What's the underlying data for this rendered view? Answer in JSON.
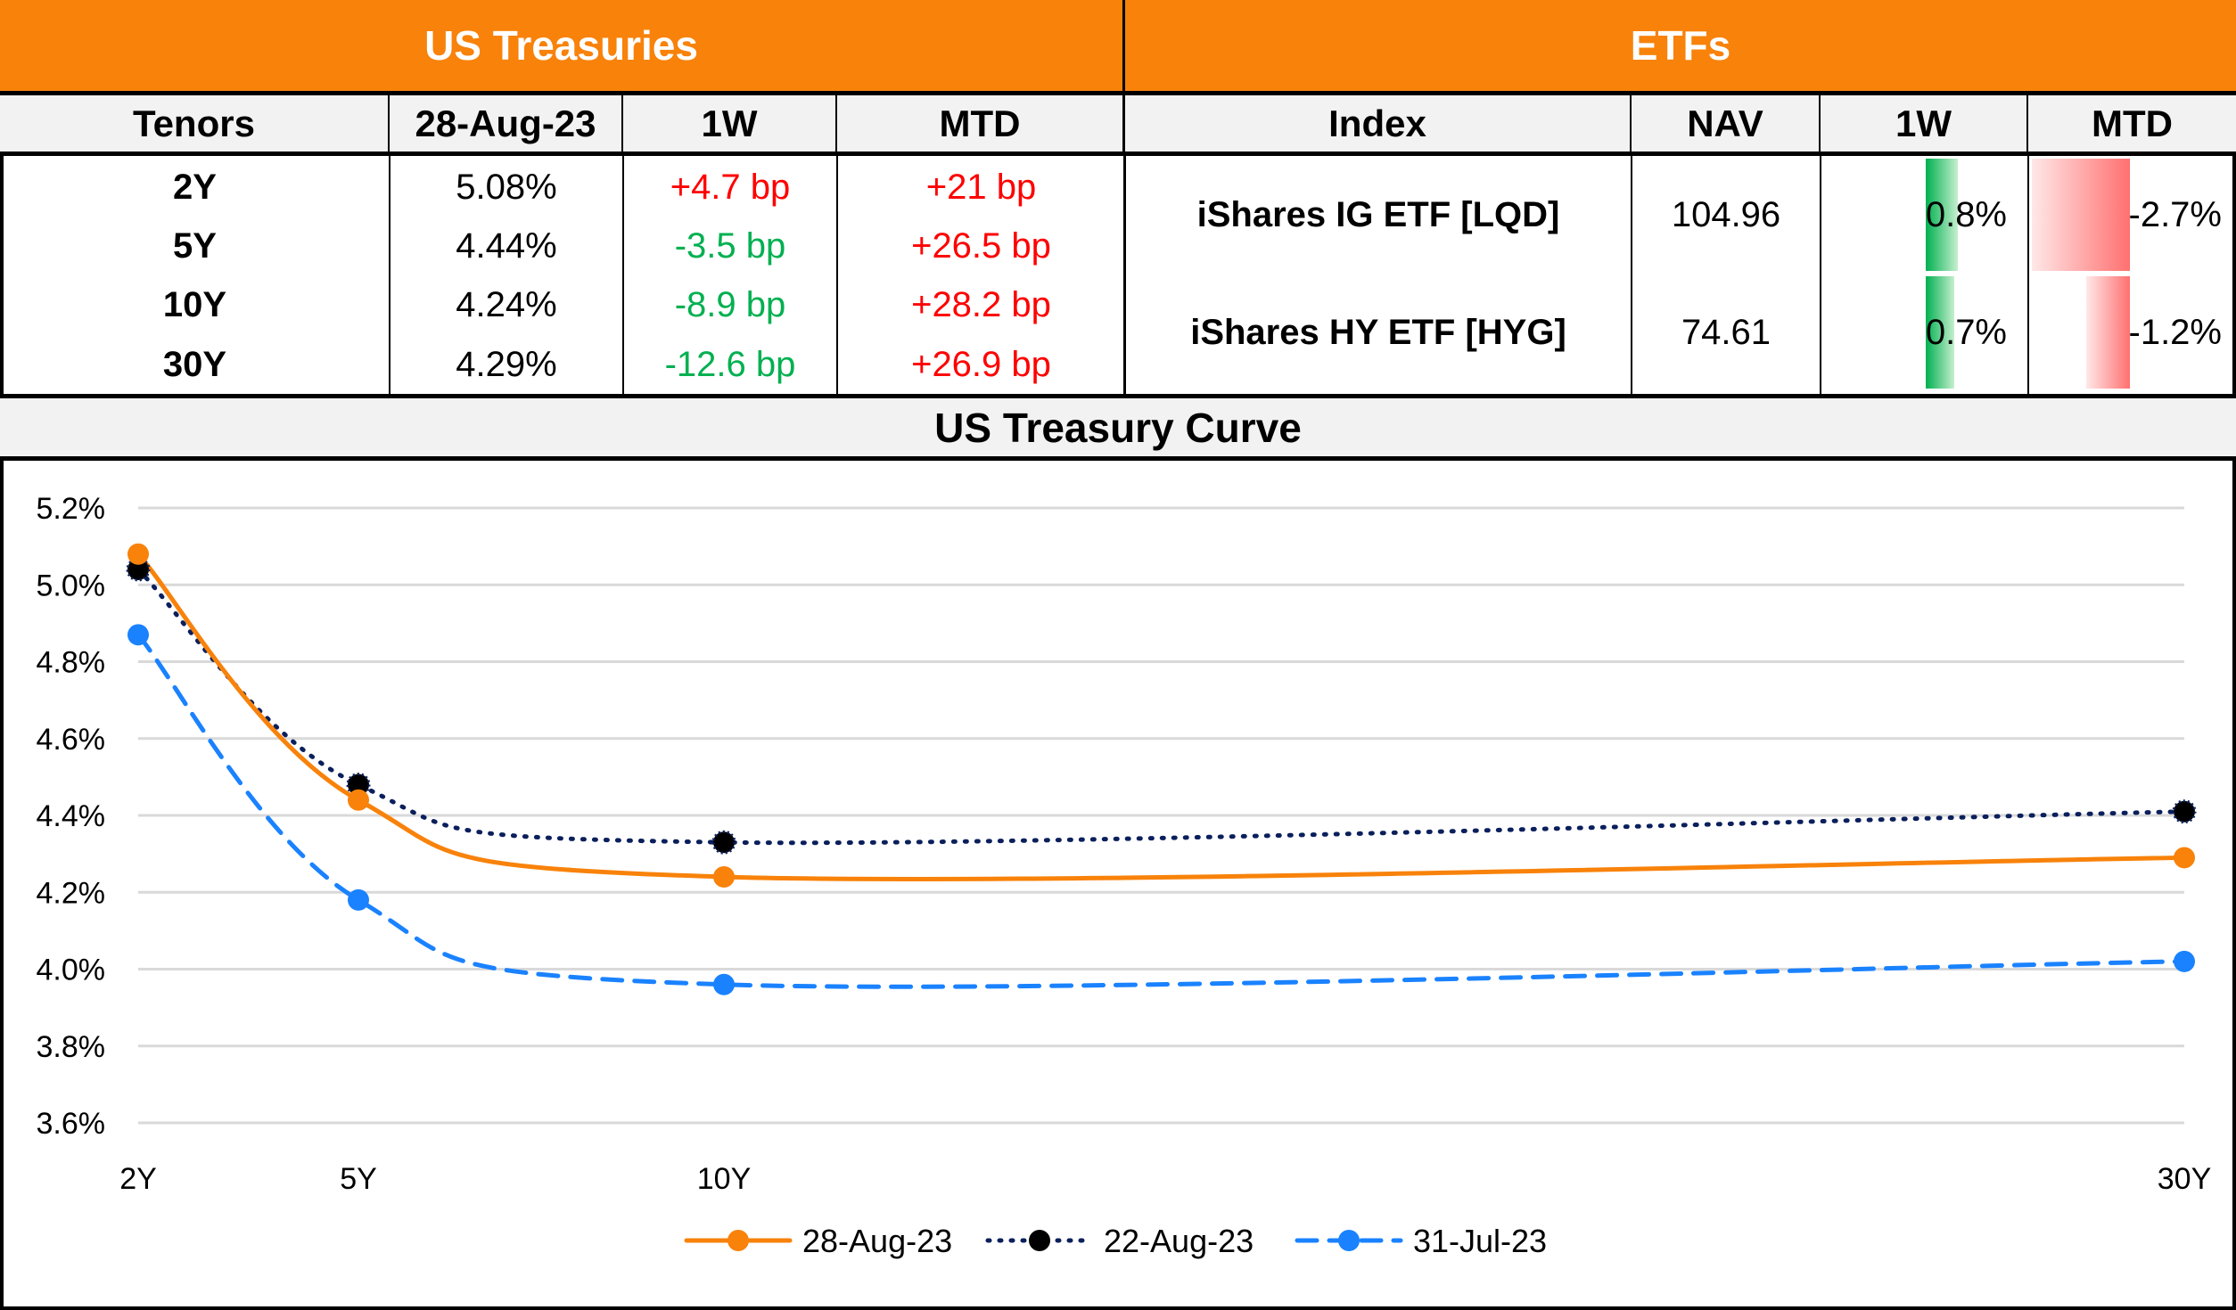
{
  "treasuries": {
    "title": "US Treasuries",
    "headers": [
      "Tenors",
      "28-Aug-23",
      "1W",
      "MTD"
    ],
    "rows": [
      {
        "tenor": "2Y",
        "yield": "5.08%",
        "w1": "+4.7 bp",
        "w1_dir": "up",
        "mtd": "+21 bp",
        "mtd_dir": "up"
      },
      {
        "tenor": "5Y",
        "yield": "4.44%",
        "w1": "-3.5 bp",
        "w1_dir": "down",
        "mtd": "+26.5 bp",
        "mtd_dir": "up"
      },
      {
        "tenor": "10Y",
        "yield": "4.24%",
        "w1": "-8.9 bp",
        "w1_dir": "down",
        "mtd": "+28.2 bp",
        "mtd_dir": "up"
      },
      {
        "tenor": "30Y",
        "yield": "4.29%",
        "w1": "-12.6 bp",
        "w1_dir": "down",
        "mtd": "+26.9 bp",
        "mtd_dir": "up"
      }
    ]
  },
  "etfs": {
    "title": "ETFs",
    "headers": [
      "Index",
      "NAV",
      "1W",
      "MTD"
    ],
    "rows": [
      {
        "name": "iShares IG ETF [LQD]",
        "nav": "104.96",
        "w1": "0.8%",
        "w1_value": 0.8,
        "mtd": "-2.7%",
        "mtd_value": -2.7
      },
      {
        "name": "iShares HY ETF [HYG]",
        "nav": "74.61",
        "w1": "0.7%",
        "w1_value": 0.7,
        "mtd": "-1.2%",
        "mtd_value": -1.2
      }
    ]
  },
  "colors": {
    "header_orange": "#f8820a",
    "up_red": "#ff0000",
    "down_green": "#00b050",
    "bar_green": "#00b050",
    "bar_red": "#ff7070"
  },
  "chart_data": {
    "type": "line",
    "title": "US Treasury Curve",
    "xlabel": "",
    "ylabel": "",
    "x": [
      "2Y",
      "5Y",
      "10Y",
      "30Y"
    ],
    "x_years": [
      2,
      5,
      10,
      30
    ],
    "ylim": [
      3.6,
      5.2
    ],
    "yticks": [
      "3.6%",
      "3.8%",
      "4.0%",
      "4.2%",
      "4.4%",
      "4.6%",
      "4.8%",
      "5.0%",
      "5.2%"
    ],
    "ytick_values": [
      3.6,
      3.8,
      4.0,
      4.2,
      4.4,
      4.6,
      4.8,
      5.0,
      5.2
    ],
    "grid": true,
    "legend_position": "bottom",
    "series": [
      {
        "name": "28-Aug-23",
        "values": [
          5.08,
          4.44,
          4.24,
          4.29
        ],
        "color": "#f8820a",
        "style": "solid"
      },
      {
        "name": "22-Aug-23",
        "values": [
          5.04,
          4.48,
          4.33,
          4.41
        ],
        "color": "#0a1f5c",
        "style": "dotted",
        "marker_color": "#000000"
      },
      {
        "name": "31-Jul-23",
        "values": [
          4.87,
          4.18,
          3.96,
          4.02
        ],
        "color": "#1a82ff",
        "style": "dashed"
      }
    ]
  }
}
